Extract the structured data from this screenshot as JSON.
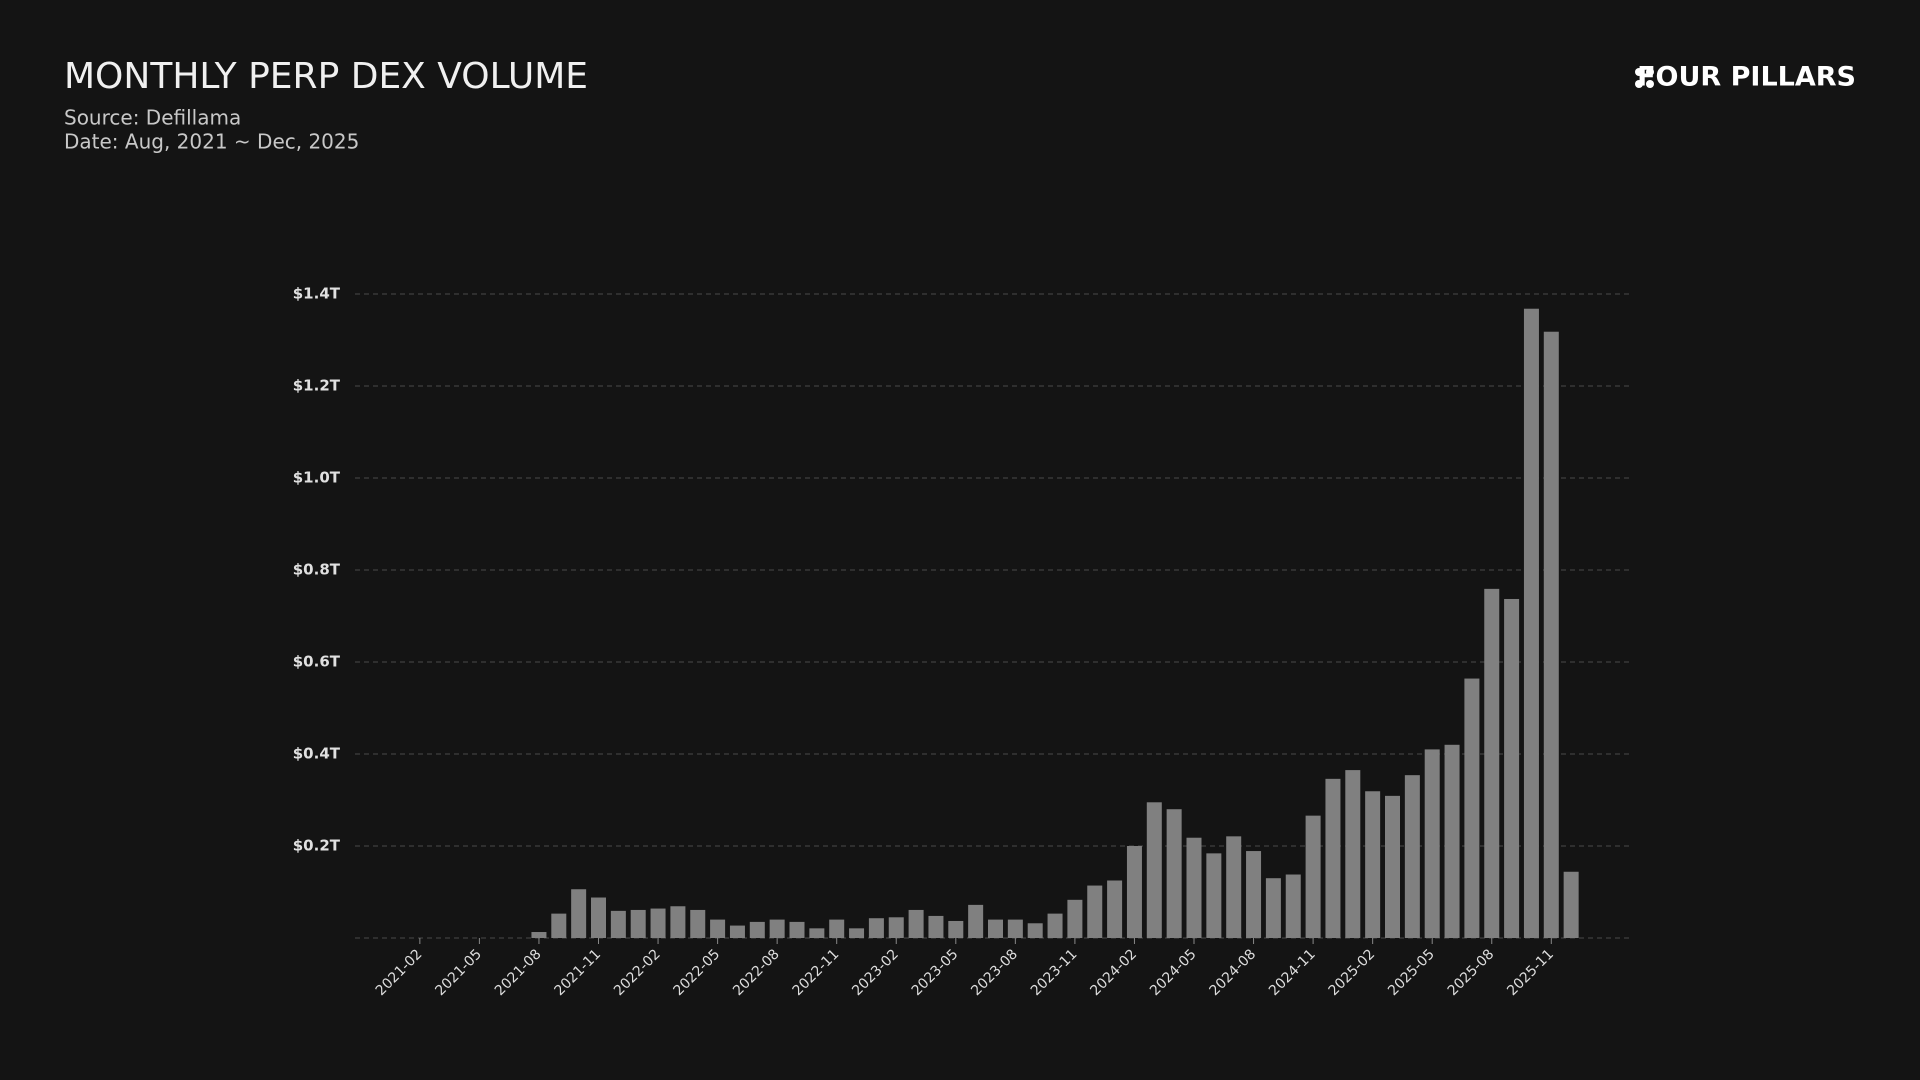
{
  "header": {
    "title": "MONTHLY PERP DEX VOLUME",
    "source": "Source: Defillama",
    "date": "Date: Aug, 2021 ~ Dec, 2025",
    "brand": "FOUR PILLARS"
  },
  "chart_data": {
    "type": "bar",
    "color": "#808080",
    "grid": true,
    "categories": [
      null,
      "2021-02",
      null,
      null,
      "2021-05",
      null,
      null,
      "2021-08",
      null,
      null,
      "2021-11",
      null,
      null,
      "2022-02",
      null,
      null,
      "2022-05",
      null,
      null,
      "2022-08",
      null,
      null,
      "2022-11",
      null,
      null,
      "2023-02",
      null,
      null,
      "2023-05",
      null,
      null,
      "2023-08",
      null,
      null,
      "2023-11",
      null,
      null,
      "2024-02",
      null,
      null,
      "2024-05",
      null,
      null,
      "2024-08",
      null,
      null,
      "2024-11",
      null,
      null,
      "2025-02",
      null,
      null,
      "2025-05",
      null,
      null,
      "2025-08",
      null,
      null,
      "2025-11",
      null
    ],
    "values": [
      0,
      0,
      0,
      0,
      0,
      0,
      0,
      0.013,
      0.053,
      0.106,
      0.088,
      0.059,
      0.061,
      0.064,
      0.069,
      0.061,
      0.04,
      0.027,
      0.035,
      0.04,
      0.035,
      0.021,
      0.04,
      0.021,
      0.043,
      0.045,
      0.061,
      0.048,
      0.037,
      0.072,
      0.04,
      0.04,
      0.032,
      0.053,
      0.083,
      0.114,
      0.125,
      0.2,
      0.295,
      0.28,
      0.218,
      0.184,
      0.221,
      0.189,
      0.13,
      0.138,
      0.266,
      0.346,
      0.365,
      0.319,
      0.309,
      0.354,
      0.41,
      0.42,
      0.564,
      0.759,
      0.737,
      1.368,
      1.318,
      0.144
    ],
    "ylim": [
      0,
      1.4
    ],
    "yticks": [
      {
        "value": 0.2,
        "label": "$0.2T"
      },
      {
        "value": 0.4,
        "label": "$0.4T"
      },
      {
        "value": 0.6,
        "label": "$0.6T"
      },
      {
        "value": 0.8,
        "label": "$0.8T"
      },
      {
        "value": 1.0,
        "label": "$1.0T"
      },
      {
        "value": 1.2,
        "label": "$1.2T"
      },
      {
        "value": 1.4,
        "label": "$1.4T"
      }
    ]
  }
}
